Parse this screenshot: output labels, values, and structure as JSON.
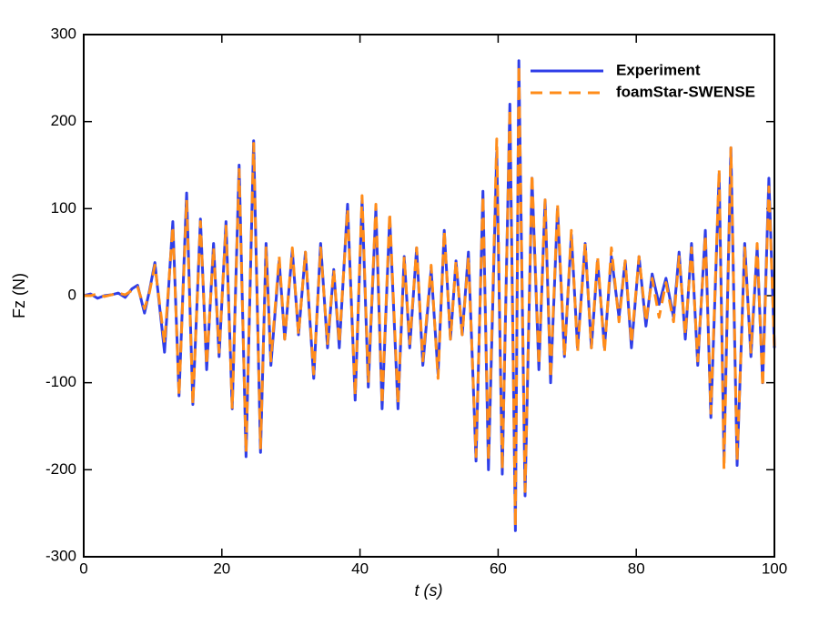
{
  "chart_data": {
    "type": "line",
    "x_label": "t (s)",
    "y_label": "Fz (N)",
    "xlim": [
      0,
      100
    ],
    "xticks": [
      0,
      20,
      40,
      60,
      80,
      100
    ],
    "ylim": [
      -300,
      300
    ],
    "yticks": [
      -300,
      -200,
      -100,
      0,
      100,
      200,
      300
    ],
    "legend": "top-right",
    "x": [
      0,
      1,
      2,
      3,
      4,
      5,
      6,
      7,
      7.8,
      8.8,
      9.5,
      10.3,
      11.7,
      12.9,
      13.8,
      14.9,
      15.8,
      16.9,
      17.8,
      18.8,
      19.6,
      20.6,
      21.5,
      22.5,
      23.5,
      24.6,
      25.6,
      26.4,
      27.1,
      28.3,
      29.1,
      30.2,
      31.1,
      32.1,
      33.3,
      34.3,
      35.3,
      36.2,
      37,
      38.2,
      39.3,
      40.3,
      41.2,
      42.3,
      43.2,
      44.3,
      45.5,
      46.4,
      47.2,
      48.2,
      49.1,
      50.3,
      51.3,
      52.2,
      53.1,
      53.9,
      54.8,
      55.7,
      56.8,
      57.8,
      58.6,
      59.8,
      60.6,
      61.7,
      62.5,
      63,
      63.9,
      64.9,
      65.9,
      66.8,
      67.6,
      68.6,
      69.6,
      70.6,
      71.5,
      72.6,
      73.5,
      74.4,
      75.4,
      76.4,
      77.5,
      78.4,
      79.3,
      80.4,
      81.4,
      82.3,
      83.3,
      84.3,
      85.4,
      86.2,
      87.1,
      88,
      88.9,
      90,
      90.8,
      92,
      92.7,
      93.7,
      94.6,
      95.7,
      96.6,
      97.5,
      98.3,
      99.2,
      100
    ],
    "series": [
      {
        "name": "Experiment",
        "color": "#2f3ee8",
        "dashed": false,
        "values": [
          0,
          2,
          -3,
          0,
          1,
          3,
          -2,
          8,
          12,
          -20,
          5,
          38,
          -65,
          85,
          -115,
          118,
          -125,
          88,
          -85,
          60,
          -70,
          85,
          -130,
          150,
          -185,
          178,
          -180,
          60,
          -80,
          40,
          -50,
          52,
          -45,
          50,
          -95,
          60,
          -60,
          30,
          -60,
          105,
          -120,
          110,
          -105,
          100,
          -130,
          90,
          -130,
          45,
          -60,
          55,
          -80,
          30,
          -90,
          75,
          -50,
          40,
          -45,
          50,
          -190,
          120,
          -200,
          165,
          -205,
          220,
          -270,
          270,
          -230,
          135,
          -85,
          110,
          -100,
          100,
          -70,
          70,
          -60,
          60,
          -60,
          40,
          -60,
          45,
          -25,
          40,
          -60,
          45,
          -35,
          25,
          -10,
          20,
          -25,
          50,
          -50,
          60,
          -80,
          75,
          -140,
          140,
          -185,
          170,
          -195,
          60,
          -70,
          55,
          -100,
          135,
          -60
        ]
      },
      {
        "name": "foamStar-SWENSE",
        "color": "#ff8c1a",
        "dashed": true,
        "values": [
          0,
          0,
          2,
          -1,
          1,
          3,
          1,
          6,
          10,
          -15,
          3,
          35,
          -55,
          80,
          -115,
          110,
          -125,
          85,
          -80,
          55,
          -65,
          80,
          -130,
          145,
          -180,
          175,
          -175,
          55,
          -75,
          45,
          -50,
          55,
          -45,
          50,
          -90,
          55,
          -55,
          30,
          -55,
          100,
          -115,
          115,
          -100,
          105,
          -125,
          95,
          -125,
          45,
          -55,
          55,
          -75,
          35,
          -95,
          75,
          -50,
          40,
          -45,
          45,
          -185,
          115,
          -190,
          180,
          -200,
          215,
          -265,
          265,
          -225,
          140,
          -80,
          110,
          -95,
          105,
          -70,
          75,
          -65,
          60,
          -60,
          45,
          -65,
          55,
          -30,
          40,
          -55,
          45,
          -30,
          20,
          -25,
          15,
          -30,
          45,
          -45,
          55,
          -75,
          70,
          -135,
          145,
          -200,
          170,
          -190,
          55,
          -65,
          60,
          -105,
          125,
          -60
        ]
      }
    ]
  }
}
